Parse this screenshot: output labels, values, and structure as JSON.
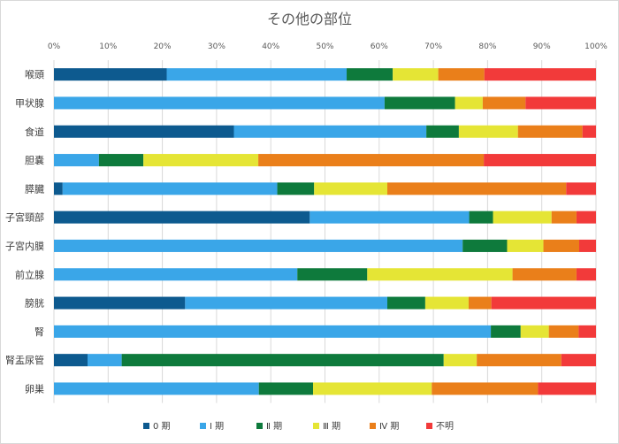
{
  "chart_data": {
    "type": "bar",
    "orientation": "horizontal",
    "stacked": "percent",
    "title": "その他の部位",
    "x_ticks": [
      "0%",
      "10%",
      "20%",
      "30%",
      "40%",
      "50%",
      "60%",
      "70%",
      "80%",
      "90%",
      "100%"
    ],
    "xlim": [
      0,
      100
    ],
    "grid": true,
    "legend_position": "bottom",
    "categories": [
      "喉頭",
      "甲状腺",
      "食道",
      "胆嚢",
      "膵臓",
      "子宮頸部",
      "子宮内膜",
      "前立腺",
      "膀胱",
      "腎",
      "腎盂尿管",
      "卵巣"
    ],
    "series": [
      {
        "name": "0 期",
        "color": "#0d5a8f",
        "values": [
          20.8,
          0,
          33.2,
          0,
          1.6,
          47.2,
          0,
          0,
          24.2,
          0,
          6.2,
          0
        ]
      },
      {
        "name": "Ⅰ 期",
        "color": "#3aa6e8",
        "values": [
          33.2,
          61.0,
          35.5,
          8.3,
          39.6,
          29.4,
          75.4,
          44.9,
          37.3,
          80.6,
          6.3,
          37.8
        ]
      },
      {
        "name": "Ⅱ 期",
        "color": "#0e7a3c",
        "values": [
          8.5,
          13.0,
          6.0,
          8.2,
          6.8,
          4.4,
          8.2,
          12.9,
          7.0,
          5.5,
          59.4,
          10.0
        ]
      },
      {
        "name": "Ⅲ 期",
        "color": "#e5e535",
        "values": [
          8.4,
          5.1,
          10.9,
          21.2,
          13.5,
          10.8,
          6.7,
          26.8,
          8.0,
          5.2,
          6.1,
          21.9
        ]
      },
      {
        "name": "Ⅳ 期",
        "color": "#ea7f1a",
        "values": [
          8.5,
          7.9,
          11.9,
          41.6,
          33.0,
          4.6,
          6.6,
          11.8,
          4.2,
          5.5,
          15.6,
          19.6
        ]
      },
      {
        "name": "不明",
        "color": "#f23a3a",
        "values": [
          20.6,
          13.0,
          2.5,
          20.7,
          5.5,
          3.6,
          3.1,
          3.6,
          19.3,
          3.2,
          6.4,
          10.7
        ]
      }
    ]
  }
}
